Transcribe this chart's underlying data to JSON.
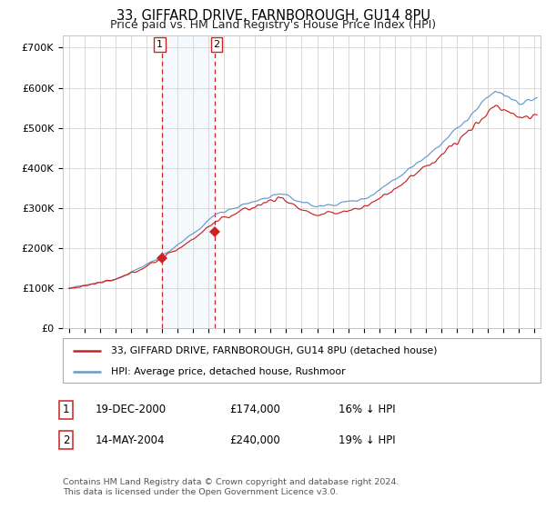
{
  "title": "33, GIFFARD DRIVE, FARNBOROUGH, GU14 8PU",
  "subtitle": "Price paid vs. HM Land Registry's House Price Index (HPI)",
  "legend_line1": "33, GIFFARD DRIVE, FARNBOROUGH, GU14 8PU (detached house)",
  "legend_line2": "HPI: Average price, detached house, Rushmoor",
  "transaction1_date": "19-DEC-2000",
  "transaction1_price": 174000,
  "transaction1_hpi_pct": "16% ↓ HPI",
  "transaction2_date": "14-MAY-2004",
  "transaction2_price": 240000,
  "transaction2_hpi_pct": "19% ↓ HPI",
  "footer": "Contains HM Land Registry data © Crown copyright and database right 2024.\nThis data is licensed under the Open Government Licence v3.0.",
  "hpi_color": "#6699cc",
  "price_color": "#cc2222",
  "transaction1_x": 2001.0,
  "transaction2_x": 2004.37,
  "transaction1_y": 174000,
  "transaction2_y": 240000,
  "ylim": [
    0,
    730000
  ],
  "xlim_start": 1994.6,
  "xlim_end": 2025.4,
  "yticks": [
    0,
    100000,
    200000,
    300000,
    400000,
    500000,
    600000,
    700000
  ],
  "ytick_labels": [
    "£0",
    "£100K",
    "£200K",
    "£300K",
    "£400K",
    "£500K",
    "£600K",
    "£700K"
  ]
}
